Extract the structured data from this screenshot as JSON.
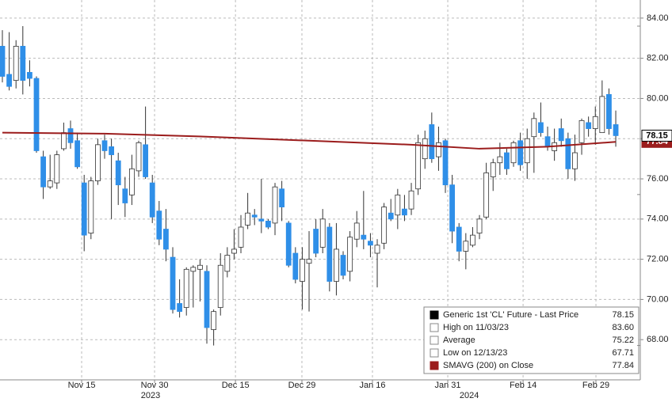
{
  "chart_data": {
    "type": "candlestick",
    "ohlc": [
      [
        82.6,
        83.4,
        80.8,
        81.1
      ],
      [
        81.2,
        83.3,
        80.4,
        80.6
      ],
      [
        80.9,
        82.9,
        80.5,
        82.6
      ],
      [
        82.6,
        83.6,
        80.2,
        80.9
      ],
      [
        81.3,
        81.9,
        80.6,
        81.0
      ],
      [
        81.0,
        81.1,
        77.3,
        77.4
      ],
      [
        77.1,
        77.4,
        75.0,
        75.6
      ],
      [
        75.6,
        77.2,
        75.5,
        75.9
      ],
      [
        75.8,
        77.4,
        75.5,
        77.2
      ],
      [
        77.5,
        78.8,
        77.4,
        78.3
      ],
      [
        78.5,
        78.9,
        77.5,
        77.8
      ],
      [
        77.9,
        78.3,
        76.5,
        76.6
      ],
      [
        75.8,
        76.2,
        72.4,
        73.2
      ],
      [
        73.3,
        76.1,
        73.0,
        75.9
      ],
      [
        75.9,
        78.0,
        75.7,
        77.7
      ],
      [
        77.9,
        78.2,
        77.0,
        77.4
      ],
      [
        77.6,
        78.0,
        74.0,
        77.2
      ],
      [
        76.9,
        77.3,
        74.7,
        75.7
      ],
      [
        75.5,
        76.1,
        74.1,
        74.8
      ],
      [
        75.2,
        77.2,
        74.7,
        76.5
      ],
      [
        76.4,
        77.9,
        76.1,
        77.8
      ],
      [
        77.7,
        79.6,
        76.0,
        76.1
      ],
      [
        75.8,
        76.2,
        73.8,
        74.1
      ],
      [
        74.4,
        74.9,
        72.7,
        73.0
      ],
      [
        73.5,
        74.5,
        71.9,
        72.5
      ],
      [
        72.1,
        72.6,
        69.3,
        69.5
      ],
      [
        69.8,
        71.0,
        69.1,
        69.4
      ],
      [
        69.6,
        71.6,
        69.2,
        71.5
      ],
      [
        71.4,
        71.7,
        69.6,
        71.6
      ],
      [
        71.5,
        72.0,
        69.9,
        71.7
      ],
      [
        71.4,
        71.7,
        67.8,
        68.6
      ],
      [
        68.5,
        69.5,
        67.71,
        69.4
      ],
      [
        69.6,
        72.3,
        69.2,
        71.7
      ],
      [
        71.4,
        72.6,
        71.1,
        72.2
      ],
      [
        72.3,
        73.5,
        72.0,
        72.5
      ],
      [
        72.6,
        74.2,
        72.3,
        73.6
      ],
      [
        73.7,
        75.3,
        73.5,
        74.3
      ],
      [
        74.2,
        74.5,
        73.7,
        74.1
      ],
      [
        74.0,
        76.0,
        73.3,
        73.9
      ],
      [
        73.9,
        74.0,
        73.5,
        73.6
      ],
      [
        73.8,
        75.8,
        73.2,
        75.6
      ],
      [
        75.5,
        75.9,
        73.9,
        74.6
      ],
      [
        73.8,
        73.9,
        71.6,
        71.7
      ],
      [
        72.3,
        72.6,
        70.8,
        71.0
      ],
      [
        70.9,
        72.6,
        69.5,
        72.0
      ],
      [
        71.8,
        73.4,
        69.4,
        72.0
      ],
      [
        73.5,
        74.0,
        72.1,
        72.3
      ],
      [
        72.6,
        74.5,
        72.3,
        74.0
      ],
      [
        73.6,
        73.8,
        70.4,
        70.9
      ],
      [
        70.9,
        73.8,
        70.2,
        72.5
      ],
      [
        72.2,
        72.4,
        71.0,
        71.2
      ],
      [
        71.4,
        73.4,
        70.9,
        73.1
      ],
      [
        73.0,
        74.4,
        72.6,
        73.8
      ],
      [
        73.2,
        75.4,
        72.5,
        73.0
      ],
      [
        72.9,
        73.3,
        72.1,
        72.7
      ],
      [
        72.3,
        73.0,
        70.6,
        72.7
      ],
      [
        72.8,
        74.8,
        72.5,
        74.6
      ],
      [
        74.3,
        75.0,
        73.9,
        74.0
      ],
      [
        74.2,
        75.5,
        73.5,
        75.2
      ],
      [
        74.5,
        75.2,
        73.9,
        74.2
      ],
      [
        74.5,
        75.8,
        74.2,
        75.4
      ],
      [
        75.5,
        78.2,
        75.2,
        77.8
      ],
      [
        77.0,
        78.4,
        76.5,
        78.0
      ],
      [
        78.7,
        79.3,
        76.8,
        77.0
      ],
      [
        77.1,
        78.6,
        76.4,
        77.8
      ],
      [
        77.9,
        78.0,
        75.3,
        75.7
      ],
      [
        75.7,
        76.2,
        72.8,
        73.4
      ],
      [
        73.6,
        73.8,
        71.9,
        72.4
      ],
      [
        72.4,
        73.3,
        71.5,
        72.9
      ],
      [
        72.7,
        73.6,
        72.6,
        73.2
      ],
      [
        73.3,
        74.2,
        73.0,
        74.0
      ],
      [
        74.1,
        76.8,
        74.0,
        76.3
      ],
      [
        76.1,
        77.0,
        75.4,
        76.8
      ],
      [
        76.8,
        77.8,
        76.2,
        77.1
      ],
      [
        77.3,
        77.5,
        76.2,
        76.5
      ],
      [
        76.8,
        77.9,
        76.6,
        77.8
      ],
      [
        77.9,
        78.3,
        76.4,
        76.7
      ],
      [
        76.8,
        78.5,
        76.0,
        78.0
      ],
      [
        78.1,
        79.3,
        76.3,
        79.0
      ],
      [
        78.8,
        79.8,
        78.1,
        78.3
      ],
      [
        78.1,
        78.6,
        77.4,
        77.6
      ],
      [
        77.4,
        78.5,
        76.9,
        77.8
      ],
      [
        78.5,
        79.0,
        77.6,
        77.9
      ],
      [
        78.0,
        78.3,
        76.0,
        76.5
      ],
      [
        76.5,
        78.2,
        75.9,
        77.3
      ],
      [
        77.8,
        79.0,
        77.2,
        78.9
      ],
      [
        78.8,
        79.1,
        78.1,
        78.5
      ],
      [
        78.5,
        79.6,
        77.7,
        79.1
      ],
      [
        78.3,
        80.9,
        78.3,
        80.1
      ],
      [
        80.2,
        80.5,
        78.2,
        78.5
      ],
      [
        78.7,
        79.4,
        77.6,
        78.15
      ]
    ],
    "up_color": "#ffffff",
    "down_color": "#2f8fe8",
    "sma": {
      "color": "#9b1c1c",
      "x": [
        0,
        15,
        30,
        45,
        60,
        70,
        80,
        90
      ],
      "values": [
        78.3,
        78.25,
        78.1,
        77.9,
        77.7,
        77.5,
        77.6,
        77.84
      ]
    },
    "xlim": [
      -0.35,
      93.6
    ],
    "ylim": [
      66.0,
      84.9
    ],
    "xticks": [
      {
        "value": 11.63,
        "label": "Nov 15"
      },
      {
        "value": 22.33,
        "label": "Nov 30"
      },
      {
        "value": 34.2,
        "label": "Dec 15"
      },
      {
        "value": 43.95,
        "label": "Dec 29"
      },
      {
        "value": 54.3,
        "label": "Jan 16"
      },
      {
        "value": 65.35,
        "label": "Jan 31"
      },
      {
        "value": 76.4,
        "label": "Feb 14"
      },
      {
        "value": 87.09,
        "label": "Feb 29"
      }
    ],
    "year_labels": [
      {
        "value": 21.74,
        "label": "2023"
      },
      {
        "value": 68.5,
        "label": "2024"
      }
    ],
    "yticks": [
      {
        "value": 68,
        "label": "68.00"
      },
      {
        "value": 70,
        "label": "70.00"
      },
      {
        "value": 72,
        "label": "72.00"
      },
      {
        "value": 74,
        "label": "74.00"
      },
      {
        "value": 76,
        "label": "76.00"
      },
      {
        "value": 78,
        "label": "78.00"
      },
      {
        "value": 80,
        "label": "80.00"
      },
      {
        "value": 82,
        "label": "82.00"
      },
      {
        "value": 84,
        "label": "84.00"
      }
    ],
    "grid": true,
    "legend": {
      "labels": [
        "Generic 1st 'CL' Future - Last Price",
        "High on 11/03/23",
        "Average",
        "Low on 12/13/23",
        "SMAVG (200)  on Close"
      ],
      "values": [
        78.15,
        83.6,
        75.22,
        67.71,
        77.84
      ],
      "value_labels": [
        "78.15",
        "83.60",
        "75.22",
        "67.71",
        "77.84"
      ],
      "colors": [
        "#000000",
        "#888888",
        "#888888",
        "#888888",
        "#9b1c1c"
      ]
    }
  }
}
